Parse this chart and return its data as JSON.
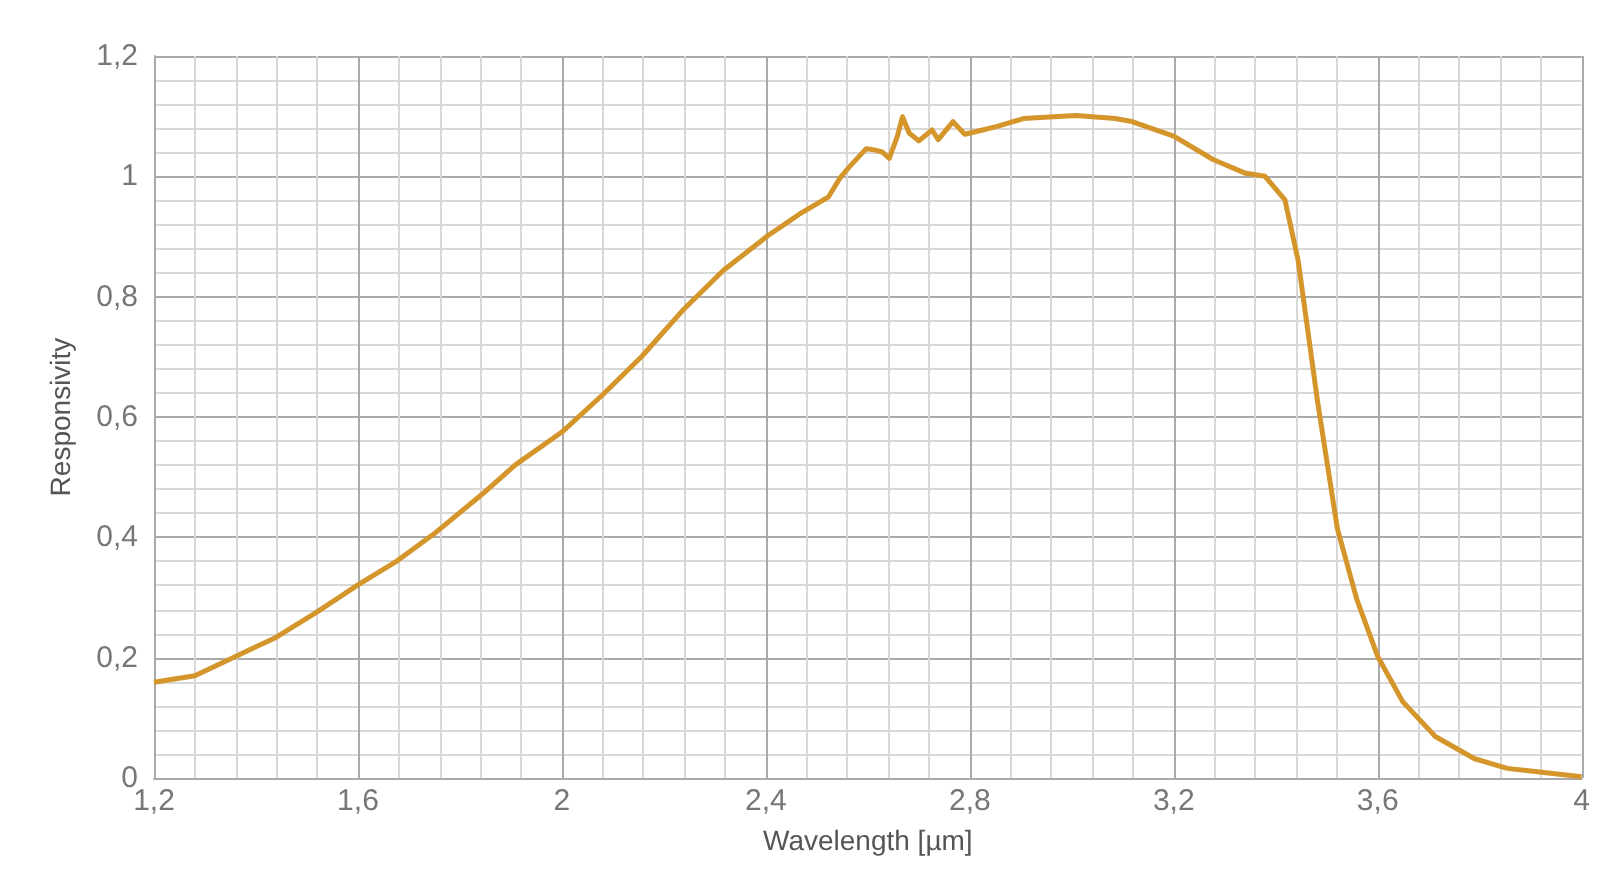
{
  "chart_data": {
    "type": "line",
    "xlabel": "Wavelength [µm]",
    "ylabel": "Responsivity",
    "x": [
      1.2,
      1.28,
      1.36,
      1.44,
      1.52,
      1.6,
      1.677,
      1.754,
      1.844,
      1.908,
      2.0,
      2.08,
      2.157,
      2.24,
      2.317,
      2.405,
      2.433,
      2.469,
      2.523,
      2.546,
      2.562,
      2.597,
      2.613,
      2.629,
      2.642,
      2.658,
      2.668,
      2.681,
      2.7,
      2.726,
      2.738,
      2.767,
      2.79,
      2.815,
      2.854,
      2.905,
      3.008,
      3.085,
      3.118,
      3.2,
      3.277,
      3.341,
      3.379,
      3.418,
      3.444,
      3.482,
      3.521,
      3.559,
      3.6,
      3.649,
      3.713,
      3.79,
      3.854,
      4.0
    ],
    "series": [
      {
        "color": "#d4952a",
        "values": [
          0.159,
          0.17,
          0.202,
          0.234,
          0.276,
          0.321,
          0.361,
          0.409,
          0.472,
          0.52,
          0.575,
          0.637,
          0.701,
          0.78,
          0.844,
          0.902,
          0.918,
          0.939,
          0.966,
          0.998,
          1.014,
          1.046,
          1.044,
          1.04,
          1.03,
          1.067,
          1.099,
          1.072,
          1.059,
          1.077,
          1.061,
          1.091,
          1.07,
          1.075,
          1.083,
          1.096,
          1.101,
          1.096,
          1.091,
          1.067,
          1.028,
          1.005,
          1.0,
          0.961,
          0.86,
          0.626,
          0.414,
          0.297,
          0.202,
          0.127,
          0.069,
          0.032,
          0.016,
          0.002
        ]
      }
    ],
    "xlim": [
      1.2,
      4
    ],
    "ylim": [
      0,
      1.2
    ],
    "xticks": [
      {
        "value": 1.2,
        "label": "1,2"
      },
      {
        "value": 1.6,
        "label": "1,6"
      },
      2,
      {
        "value": 2.4,
        "label": "2,4"
      },
      {
        "value": 2.8,
        "label": "2,8"
      },
      {
        "value": 3.2,
        "label": "3,2"
      },
      {
        "value": 3.6,
        "label": "3,6"
      },
      4
    ],
    "yticks": [
      0,
      {
        "value": 0.2,
        "label": "0,2"
      },
      {
        "value": 0.4,
        "label": "0,4"
      },
      {
        "value": 0.6,
        "label": "0,6"
      },
      {
        "value": 0.8,
        "label": "0,8"
      },
      1,
      {
        "value": 1.2,
        "label": "1,2"
      }
    ],
    "grid": true,
    "marker": "none",
    "line_style": "solid"
  }
}
